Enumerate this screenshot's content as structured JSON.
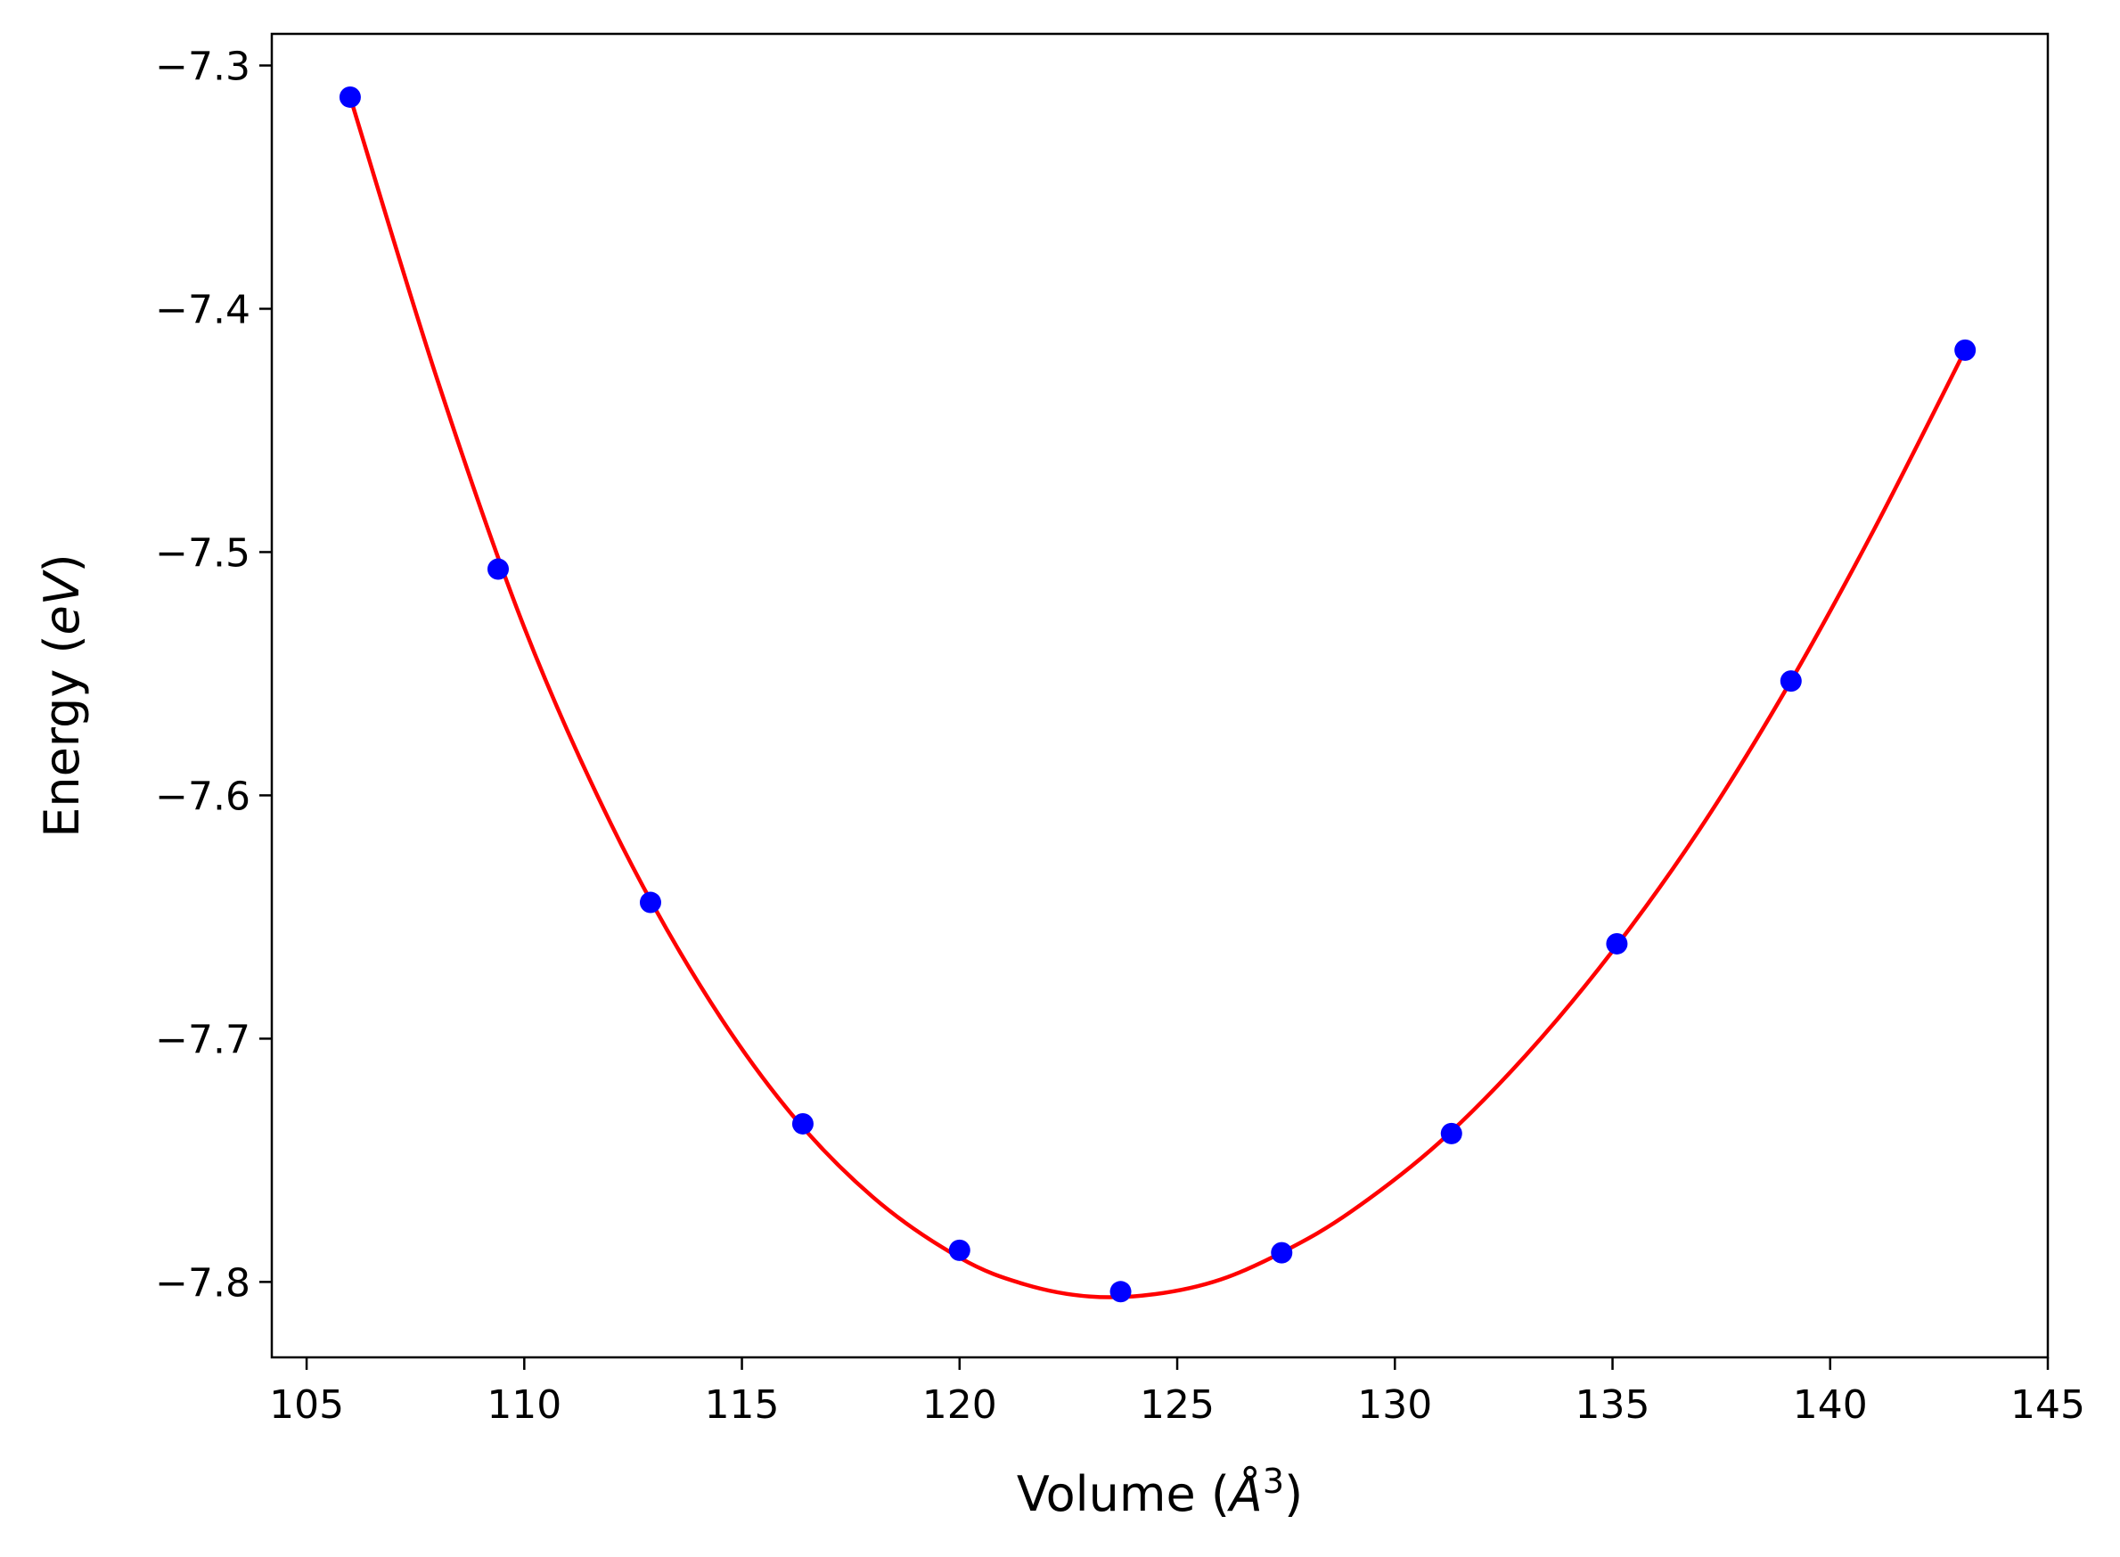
{
  "chart_data": {
    "type": "scatter",
    "title": "",
    "xlabel": "Volume",
    "xlabel_unit": "Å",
    "xlabel_unit_exp": "3",
    "ylabel": "Energy",
    "ylabel_unit": "eV",
    "xlim": [
      104.2,
      145.0
    ],
    "ylim": [
      -7.831,
      -7.287
    ],
    "xticks": [
      105,
      110,
      115,
      120,
      125,
      130,
      135,
      140,
      145
    ],
    "yticks": [
      -7.3,
      -7.4,
      -7.5,
      -7.6,
      -7.7,
      -7.8
    ],
    "ytick_labels": [
      "−7.3",
      "−7.4",
      "−7.5",
      "−7.6",
      "−7.7",
      "−7.8"
    ],
    "grid": false,
    "series": [
      {
        "kind": "points",
        "color": "#0000ff",
        "x": [
          106.0,
          109.4,
          112.9,
          116.4,
          120.0,
          123.7,
          127.4,
          131.3,
          135.1,
          139.1,
          143.1
        ],
        "y": [
          -7.313,
          -7.507,
          -7.644,
          -7.735,
          -7.787,
          -7.804,
          -7.788,
          -7.739,
          -7.661,
          -7.553,
          -7.417
        ]
      },
      {
        "kind": "fit-curve",
        "color": "#ff0000",
        "x": [
          106.0,
          108.0,
          110.0,
          112.0,
          114.0,
          116.0,
          118.0,
          120.0,
          121.5,
          123.0,
          124.5,
          126.0,
          127.5,
          129.0,
          131.0,
          133.0,
          135.0,
          137.0,
          139.0,
          141.0,
          143.1
        ],
        "y": [
          -7.313,
          -7.429,
          -7.531,
          -7.612,
          -7.677,
          -7.728,
          -7.765,
          -7.79,
          -7.801,
          -7.806,
          -7.805,
          -7.799,
          -7.787,
          -7.771,
          -7.743,
          -7.707,
          -7.664,
          -7.614,
          -7.556,
          -7.491,
          -7.417
        ]
      }
    ]
  }
}
